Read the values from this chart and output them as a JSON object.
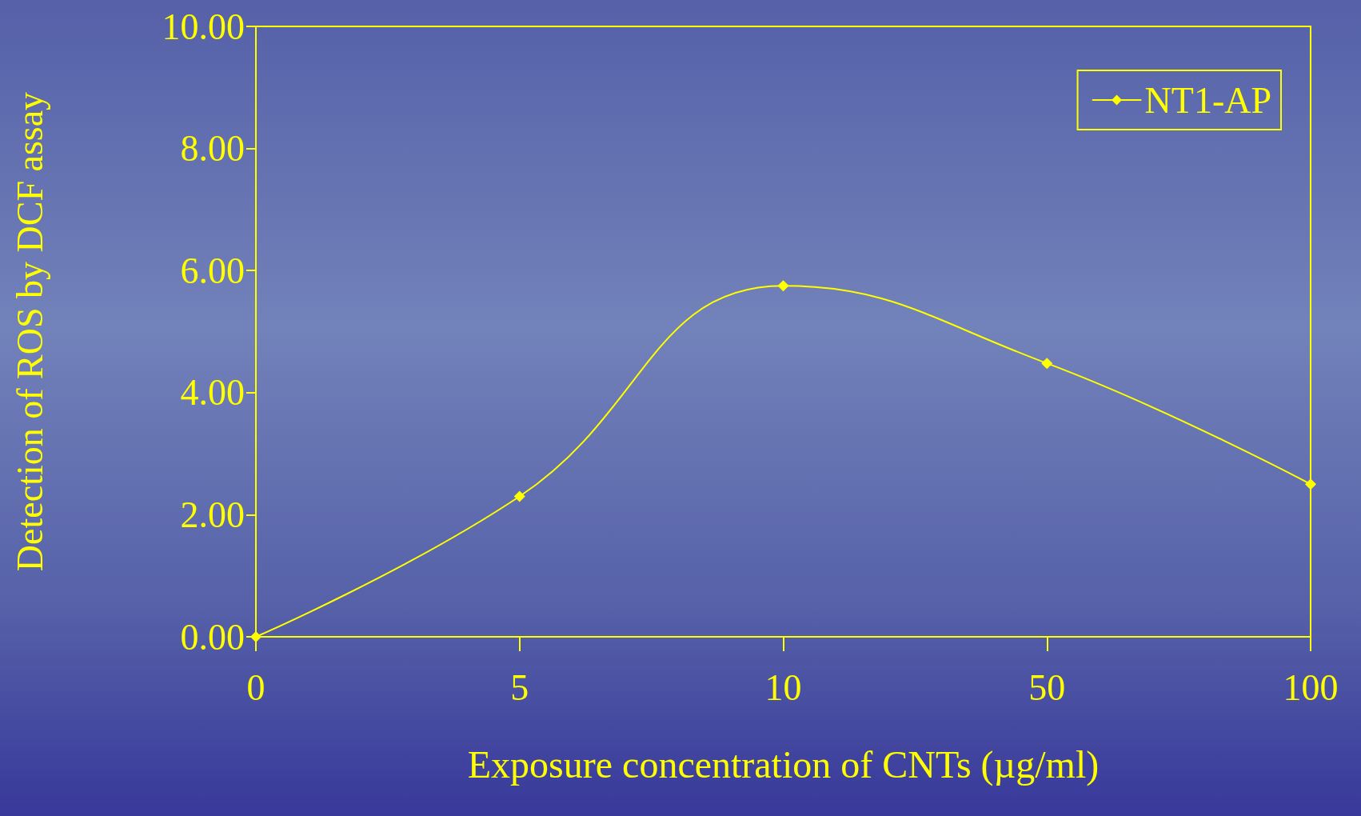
{
  "chart_data": {
    "type": "line",
    "categories": [
      "0",
      "5",
      "10",
      "50",
      "100"
    ],
    "series": [
      {
        "name": "NT1-AP",
        "color": "#ffff00",
        "values": [
          0,
          2.3,
          5.75,
          4.48,
          2.5
        ]
      }
    ],
    "xlabel": "Exposure concentration of CNTs (µg/ml)",
    "ylabel": "Detection of ROS by DCF assay",
    "ylim": [
      0,
      10
    ],
    "yticks": [
      {
        "value": 0,
        "label": "0.00"
      },
      {
        "value": 2,
        "label": "2.00"
      },
      {
        "value": 4,
        "label": "4.00"
      },
      {
        "value": 6,
        "label": "6.00"
      },
      {
        "value": 8,
        "label": "8.00"
      },
      {
        "value": 10,
        "label": "10.00"
      }
    ],
    "grid": false,
    "legend": "top right",
    "marker": "diamond",
    "line_style": "solid"
  }
}
